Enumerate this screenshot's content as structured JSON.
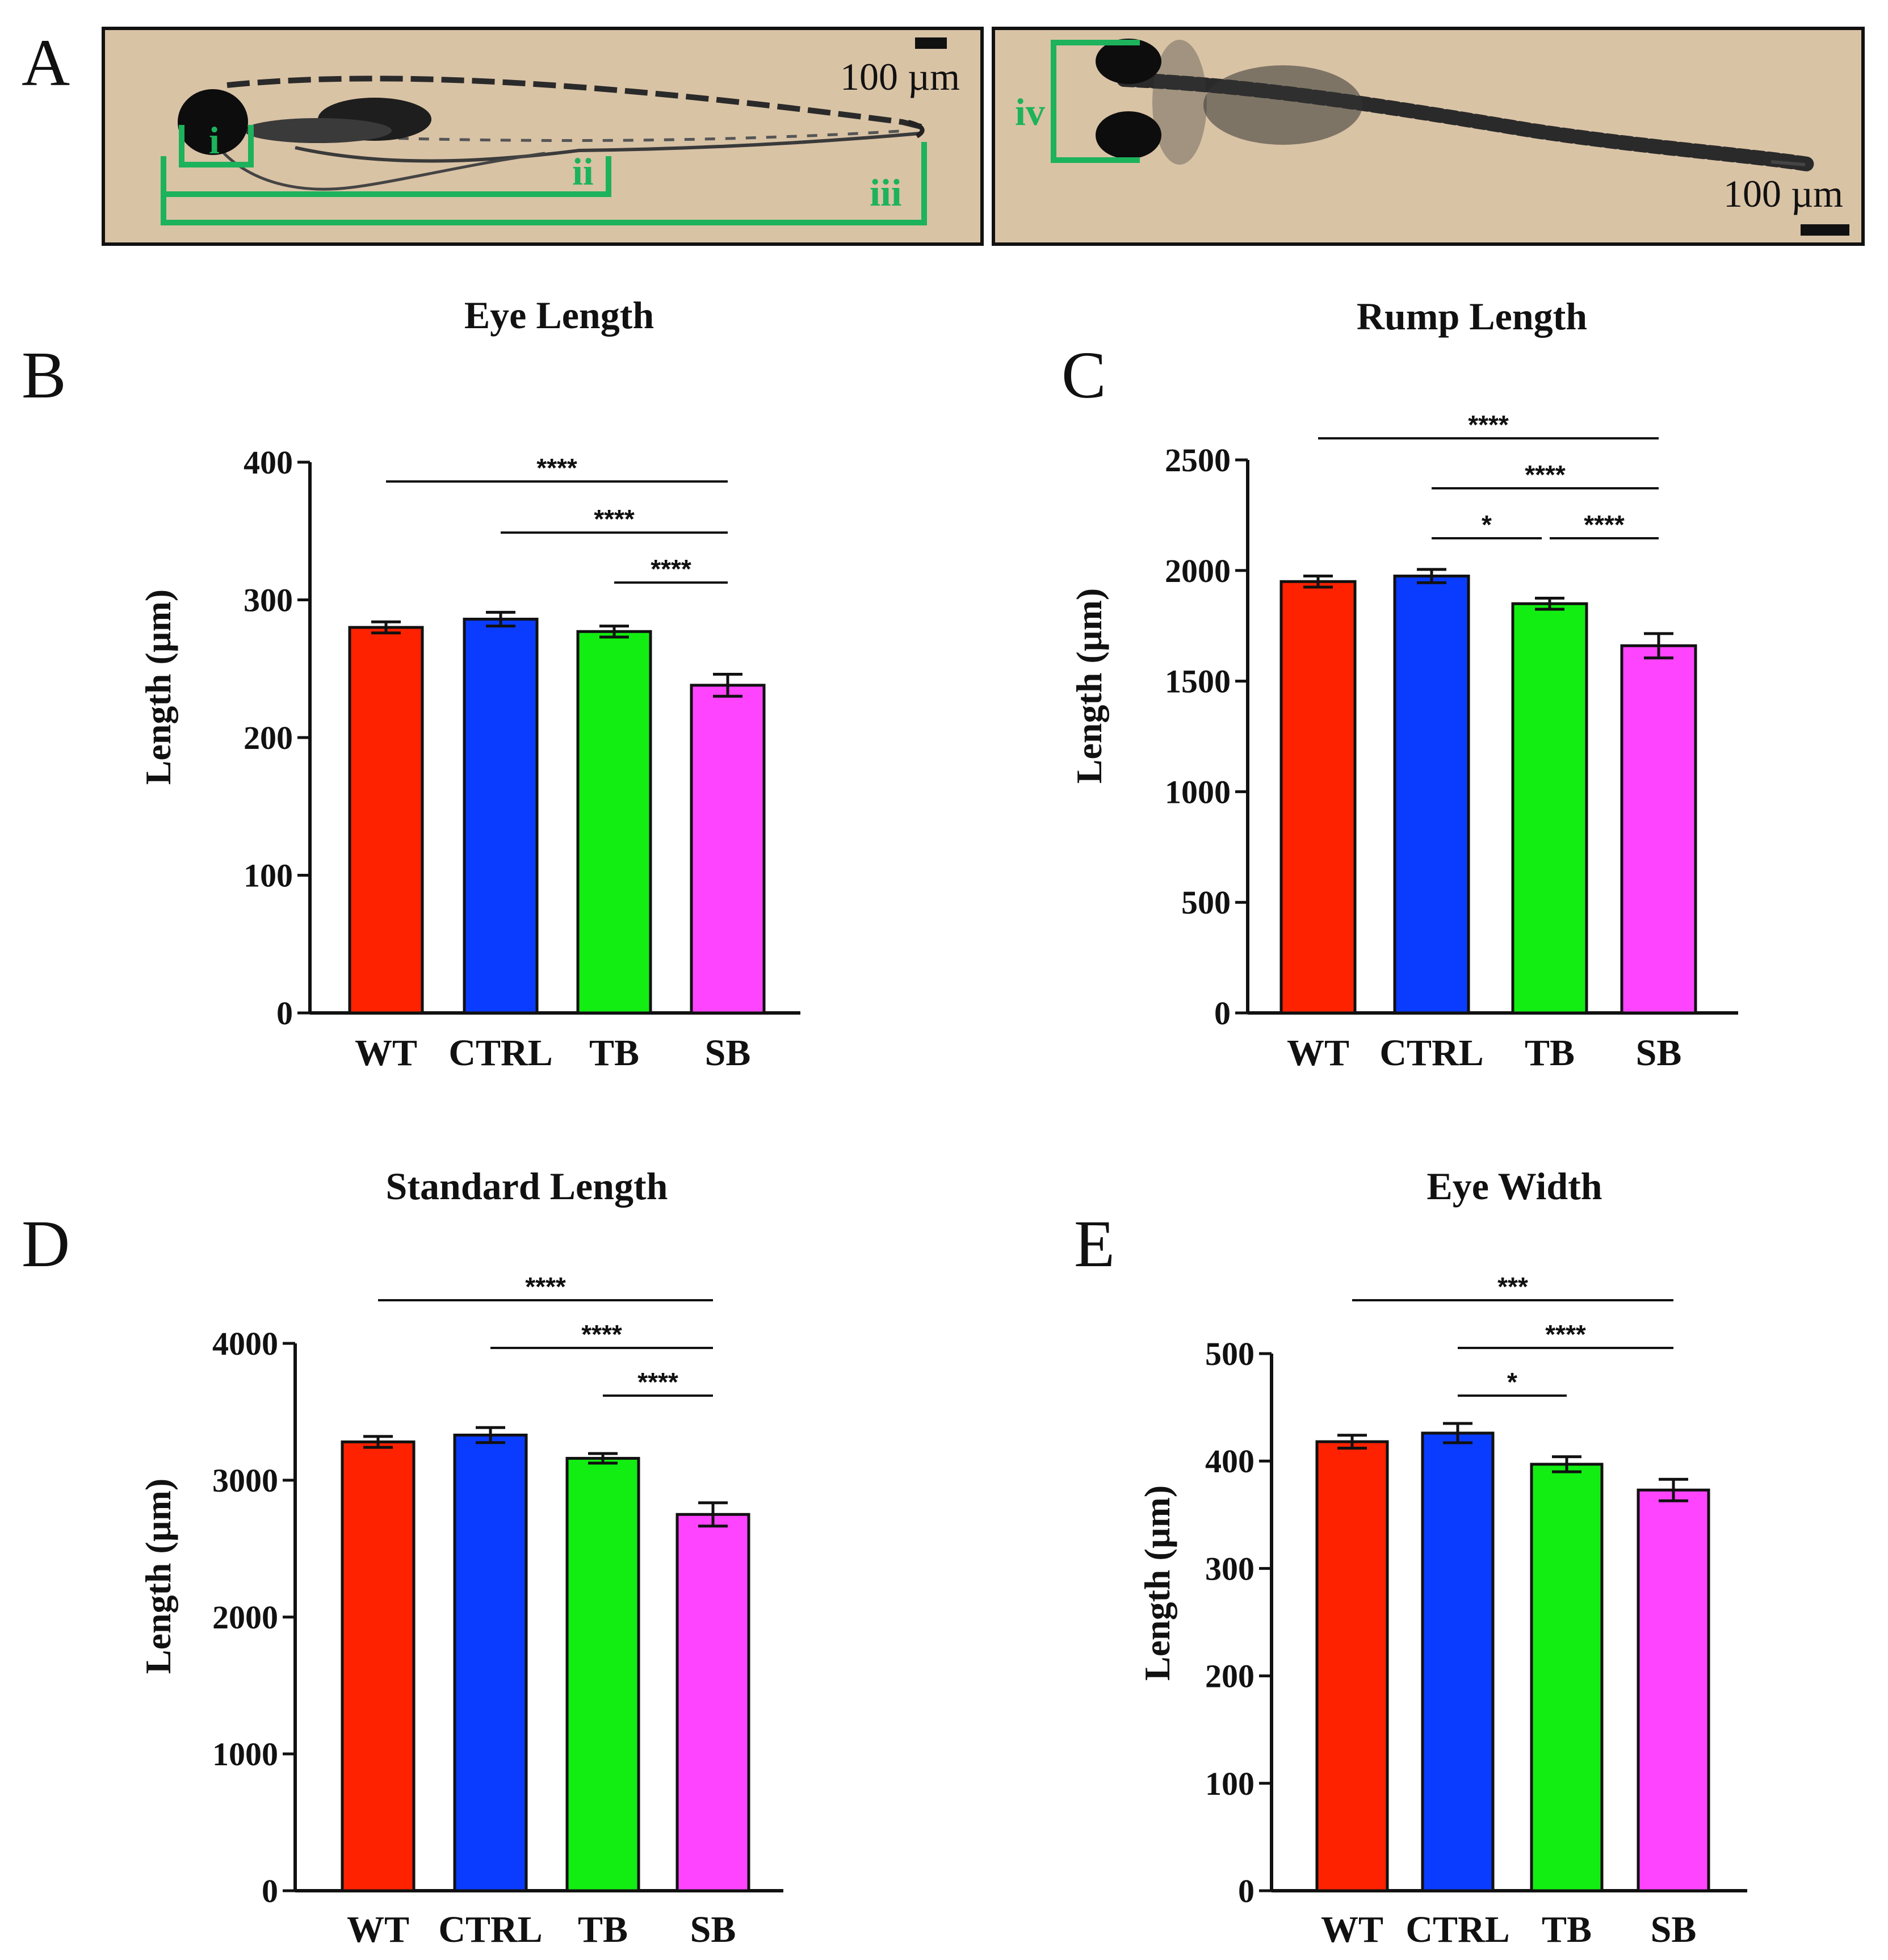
{
  "figure": {
    "panel_a": {
      "label": "A",
      "left_image": {
        "scale_bar_label": "100 µm",
        "annotations": [
          "i",
          "ii",
          "iii"
        ]
      },
      "right_image": {
        "scale_bar_label": "100 µm",
        "annotations": [
          "iv"
        ]
      }
    },
    "colors": {
      "image_bg": "#d9c3a5",
      "annotation": "#1db25c",
      "bars": [
        "#ff2200",
        "#0a3cff",
        "#12ee12",
        "#ff44ff"
      ]
    }
  },
  "chart_data": [
    {
      "panel": "B",
      "type": "bar",
      "title": "Eye Length",
      "ylabel": "Length (µm)",
      "xlabel": "",
      "categories": [
        "WT",
        "CTRL",
        "TB",
        "SB"
      ],
      "values": [
        280,
        286,
        277,
        238
      ],
      "errors": [
        4,
        5,
        4,
        8
      ],
      "ylim": [
        0,
        400
      ],
      "yticks": [
        "0",
        "100",
        "200",
        "300",
        "400"
      ],
      "significance": [
        {
          "from": "WT",
          "to": "SB",
          "label": "****"
        },
        {
          "from": "CTRL",
          "to": "SB",
          "label": "****"
        },
        {
          "from": "TB",
          "to": "SB",
          "label": "****"
        }
      ]
    },
    {
      "panel": "C",
      "type": "bar",
      "title": "Rump Length",
      "ylabel": "Length (µm)",
      "xlabel": "",
      "categories": [
        "WT",
        "CTRL",
        "TB",
        "SB"
      ],
      "values": [
        1950,
        1975,
        1850,
        1660
      ],
      "errors": [
        25,
        30,
        25,
        55
      ],
      "ylim": [
        0,
        2500
      ],
      "yticks": [
        "0",
        "500",
        "1000",
        "1500",
        "2000",
        "2500"
      ],
      "significance": [
        {
          "from": "WT",
          "to": "SB",
          "label": "****"
        },
        {
          "from": "CTRL",
          "to": "SB",
          "label": "****"
        },
        {
          "from": "CTRL",
          "to": "TB",
          "label": "*"
        },
        {
          "from": "TB",
          "to": "SB",
          "label": "****"
        }
      ]
    },
    {
      "panel": "D",
      "type": "bar",
      "title": "Standard Length",
      "ylabel": "Length (µm)",
      "xlabel": "",
      "categories": [
        "WT",
        "CTRL",
        "TB",
        "SB"
      ],
      "values": [
        3280,
        3330,
        3160,
        2750
      ],
      "errors": [
        40,
        55,
        35,
        85
      ],
      "ylim": [
        0,
        4000
      ],
      "yticks": [
        "0",
        "1000",
        "2000",
        "3000",
        "4000"
      ],
      "significance": [
        {
          "from": "WT",
          "to": "SB",
          "label": "****"
        },
        {
          "from": "CTRL",
          "to": "SB",
          "label": "****"
        },
        {
          "from": "TB",
          "to": "SB",
          "label": "****"
        }
      ]
    },
    {
      "panel": "E",
      "type": "bar",
      "title": "Eye Width",
      "ylabel": "Length (µm)",
      "xlabel": "",
      "categories": [
        "WT",
        "CTRL",
        "TB",
        "SB"
      ],
      "values": [
        418,
        426,
        397,
        373
      ],
      "errors": [
        6,
        9,
        7,
        10
      ],
      "ylim": [
        0,
        500
      ],
      "yticks": [
        "0",
        "100",
        "200",
        "300",
        "400",
        "500"
      ],
      "significance": [
        {
          "from": "WT",
          "to": "SB",
          "label": "***"
        },
        {
          "from": "CTRL",
          "to": "SB",
          "label": "****"
        },
        {
          "from": "CTRL",
          "to": "TB",
          "label": "*"
        }
      ]
    }
  ]
}
